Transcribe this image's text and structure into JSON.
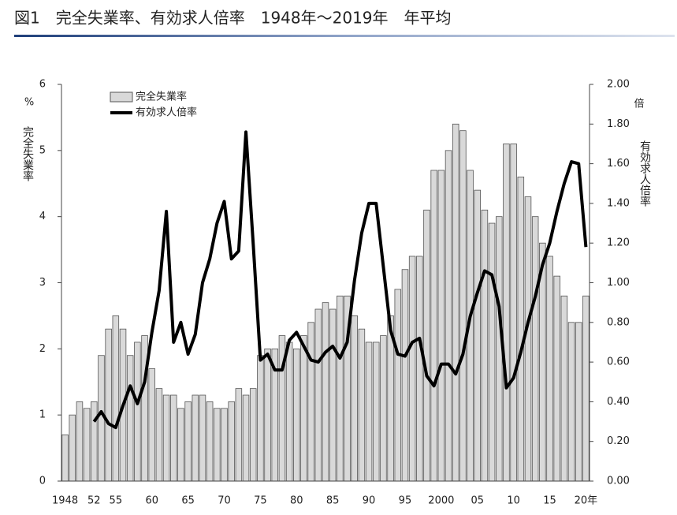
{
  "chart_data": {
    "type": "bar_line",
    "title": "図1　完全失業率、有効求人倍率　1948年～2019年　年平均",
    "y_label": "完全失業率",
    "y_unit": "%",
    "y2_label": "有効求人倍率",
    "y2_unit": "倍",
    "categories": [
      "1948",
      null,
      null,
      null,
      "52",
      null,
      null,
      "55",
      null,
      null,
      null,
      null,
      "60",
      null,
      null,
      null,
      null,
      "65",
      null,
      null,
      null,
      null,
      "70",
      null,
      null,
      null,
      null,
      "75",
      null,
      null,
      null,
      null,
      "80",
      null,
      null,
      null,
      null,
      "85",
      null,
      null,
      null,
      null,
      "90",
      null,
      null,
      null,
      null,
      "95",
      null,
      null,
      null,
      null,
      "2000",
      null,
      null,
      null,
      null,
      "05",
      null,
      null,
      null,
      null,
      "10",
      null,
      null,
      null,
      null,
      "15",
      null,
      null,
      null,
      null,
      "20年"
    ],
    "series": [
      {
        "name": "完全失業率",
        "kind": "bar",
        "color": "#d9d9d9",
        "values": [
          0.7,
          1.0,
          1.2,
          1.1,
          1.2,
          1.9,
          2.3,
          2.5,
          2.3,
          1.9,
          2.1,
          2.2,
          1.7,
          1.4,
          1.3,
          1.3,
          1.1,
          1.2,
          1.3,
          1.3,
          1.2,
          1.1,
          1.1,
          1.2,
          1.4,
          1.3,
          1.4,
          1.9,
          2.0,
          2.0,
          2.2,
          2.1,
          2.0,
          2.2,
          2.4,
          2.6,
          2.7,
          2.6,
          2.8,
          2.8,
          2.5,
          2.3,
          2.1,
          2.1,
          2.2,
          2.5,
          2.9,
          3.2,
          3.4,
          3.4,
          4.1,
          4.7,
          4.7,
          5.0,
          5.4,
          5.3,
          4.7,
          4.4,
          4.1,
          3.9,
          4.0,
          5.1,
          5.1,
          4.6,
          4.3,
          4.0,
          3.6,
          3.4,
          3.1,
          2.8,
          2.4,
          2.4,
          2.8
        ]
      },
      {
        "name": "有効求人倍率",
        "kind": "line",
        "color": "#000000",
        "axis": "y2",
        "values": [
          null,
          null,
          null,
          null,
          0.3,
          0.35,
          0.29,
          0.27,
          0.38,
          0.48,
          0.39,
          0.5,
          0.75,
          0.96,
          1.36,
          0.7,
          0.8,
          0.64,
          0.74,
          1.0,
          1.12,
          1.3,
          1.41,
          1.12,
          1.16,
          1.76,
          1.2,
          0.61,
          0.64,
          0.56,
          0.56,
          0.71,
          0.75,
          0.68,
          0.61,
          0.6,
          0.65,
          0.68,
          0.62,
          0.7,
          1.01,
          1.25,
          1.4,
          1.4,
          1.08,
          0.76,
          0.64,
          0.63,
          0.7,
          0.72,
          0.53,
          0.48,
          0.59,
          0.59,
          0.54,
          0.64,
          0.83,
          0.95,
          1.06,
          1.04,
          0.88,
          0.47,
          0.52,
          0.65,
          0.8,
          0.93,
          1.09,
          1.2,
          1.36,
          1.5,
          1.61,
          1.6,
          1.18
        ]
      }
    ],
    "ylim": [
      0,
      6
    ],
    "yticks": [
      0,
      1,
      2,
      3,
      4,
      5,
      6
    ],
    "y2lim": [
      0,
      2
    ],
    "y2ticks": [
      {
        "value": 0,
        "label": "0.00"
      },
      {
        "value": 0.2,
        "label": "0.20"
      },
      {
        "value": 0.4,
        "label": "0.40"
      },
      {
        "value": 0.6,
        "label": "0.60"
      },
      {
        "value": 0.8,
        "label": "0.80"
      },
      {
        "value": 1,
        "label": "1.00"
      },
      {
        "value": 1.2,
        "label": "1.20"
      },
      {
        "value": 1.4,
        "label": "1.40"
      },
      {
        "value": 1.6,
        "label": "1.60"
      },
      {
        "value": 1.8,
        "label": "1.80"
      },
      {
        "value": 2,
        "label": "2.00"
      }
    ],
    "legend": "top-left"
  }
}
